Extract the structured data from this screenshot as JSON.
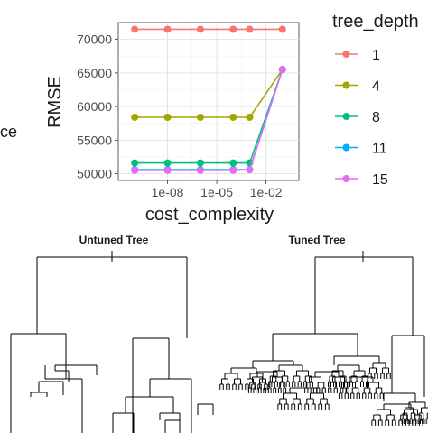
{
  "left_edge_text": "ce",
  "chart_data": [
    {
      "type": "line",
      "xlabel": "cost_complexity",
      "ylabel": "RMSE",
      "x_scale": "log10",
      "x": [
        1e-10,
        1e-08,
        1e-06,
        0.0001,
        0.001,
        0.1
      ],
      "x_ticks": [
        1e-08,
        1e-05,
        0.01
      ],
      "x_tick_labels": [
        "1e-08",
        "1e-05",
        "1e-02"
      ],
      "y_ticks": [
        50000,
        55000,
        60000,
        65000,
        70000
      ],
      "y_tick_labels": [
        "50000",
        "55000",
        "60000",
        "65000",
        "70000"
      ],
      "ylim": [
        49000,
        72500
      ],
      "grid": true,
      "legend": {
        "title": "tree_depth",
        "position": "right"
      },
      "series": [
        {
          "name": "1",
          "color": "#F8766D",
          "values": [
            71500,
            71500,
            71500,
            71500,
            71500,
            71500
          ]
        },
        {
          "name": "4",
          "color": "#A3A500",
          "values": [
            58400,
            58400,
            58400,
            58400,
            58400,
            65500
          ]
        },
        {
          "name": "8",
          "color": "#00BF7D",
          "values": [
            51600,
            51600,
            51600,
            51600,
            51600,
            65500
          ]
        },
        {
          "name": "11",
          "color": "#00B0F6",
          "values": [
            50600,
            50600,
            50600,
            50600,
            50600,
            65500
          ]
        },
        {
          "name": "15",
          "color": "#E76BF3",
          "values": [
            50500,
            50500,
            50500,
            50500,
            50600,
            65500
          ]
        }
      ]
    }
  ],
  "trees": [
    {
      "title": "Untuned Tree"
    },
    {
      "title": "Tuned Tree"
    }
  ]
}
